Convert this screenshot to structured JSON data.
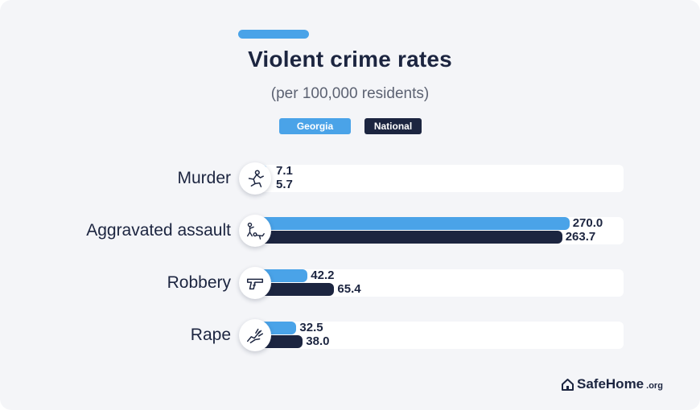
{
  "header": {
    "title": "Violent crime rates",
    "subtitle": "(per 100,000 residents)"
  },
  "legend": [
    {
      "label": "Georgia",
      "color": "#4aa3e8"
    },
    {
      "label": "National",
      "color": "#1c2540"
    }
  ],
  "chart_data": {
    "type": "bar",
    "orientation": "horizontal",
    "title": "Violent crime rates",
    "subtitle": "(per 100,000 residents)",
    "categories": [
      "Murder",
      "Aggravated assault",
      "Robbery",
      "Rape"
    ],
    "category_icons": [
      "chalk-outline-icon",
      "assault-icon",
      "gun-icon",
      "hand-grab-icon"
    ],
    "series": [
      {
        "name": "Georgia",
        "color": "#4aa3e8",
        "values": [
          7.1,
          270.0,
          42.2,
          32.5
        ]
      },
      {
        "name": "National",
        "color": "#1c2540",
        "values": [
          5.7,
          263.7,
          65.4,
          38.0
        ]
      }
    ],
    "value_labels": [
      [
        "7.1",
        "270.0",
        "42.2",
        "32.5"
      ],
      [
        "5.7",
        "263.7",
        "65.4",
        "38.0"
      ]
    ],
    "xlim": [
      0,
      280
    ],
    "grid": false,
    "legend_position": "top-center"
  },
  "branding": {
    "logo_text": "SafeHome",
    "logo_tld": ".org",
    "logo_icon": "house-icon"
  }
}
